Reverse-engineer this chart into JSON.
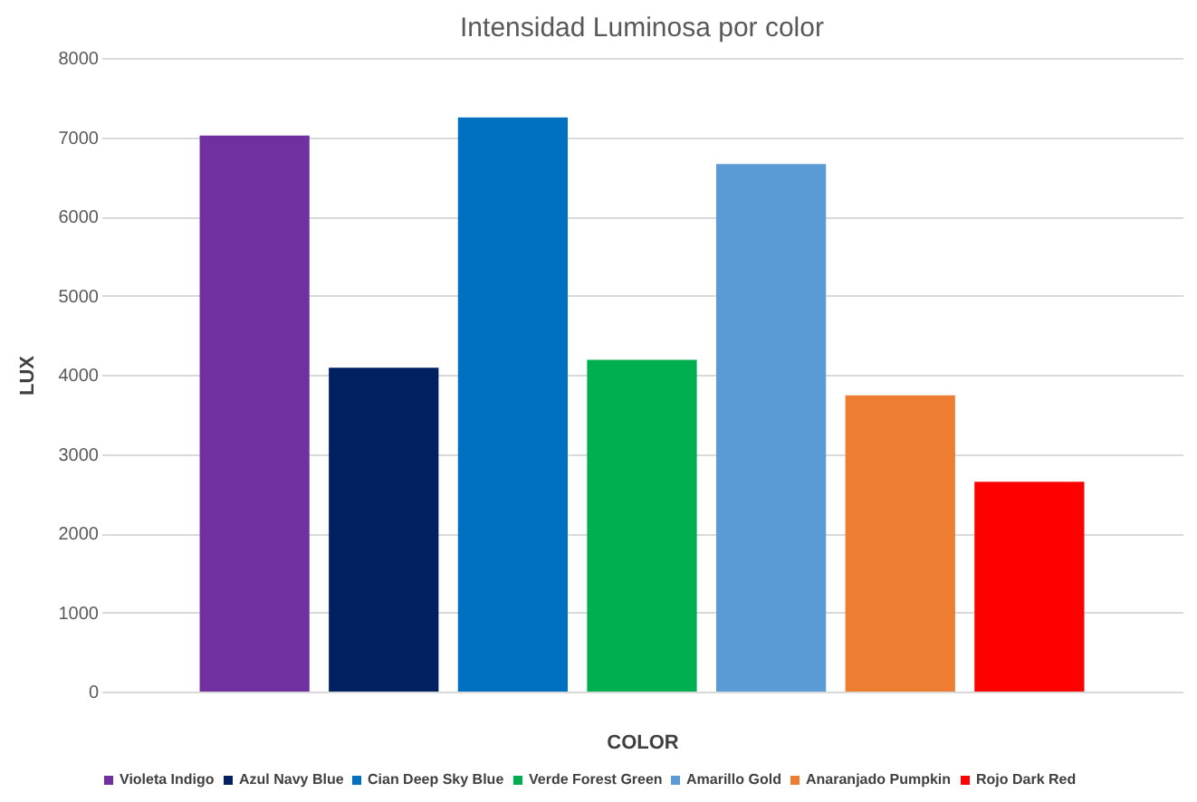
{
  "chart_data": {
    "type": "bar",
    "title": "Intensidad Luminosa por color",
    "xlabel": "COLOR",
    "ylabel": "LUX",
    "categories": [
      null
    ],
    "series": [
      {
        "name": "Violeta Indigo",
        "color": "#7030a0",
        "values": [
          7020
        ]
      },
      {
        "name": "Azul Navy Blue",
        "color": "#002060",
        "values": [
          4090
        ]
      },
      {
        "name": "Cian Deep Sky Blue",
        "color": "#0070c0",
        "values": [
          7250
        ]
      },
      {
        "name": "Verde Forest Green",
        "color": "#00b050",
        "values": [
          4190
        ]
      },
      {
        "name": "Amarillo Gold",
        "color": "#5b9bd5",
        "values": [
          6660
        ]
      },
      {
        "name": "Anaranjado Pumpkin",
        "color": "#ed7d31",
        "values": [
          3740
        ]
      },
      {
        "name": "Rojo Dark Red",
        "color": "#ff0000",
        "values": [
          2650
        ]
      }
    ],
    "ylim": [
      0,
      8000
    ],
    "yticks": [
      0,
      1000,
      2000,
      3000,
      4000,
      5000,
      6000,
      7000,
      8000
    ],
    "grid": "y",
    "legend": "bottom"
  }
}
